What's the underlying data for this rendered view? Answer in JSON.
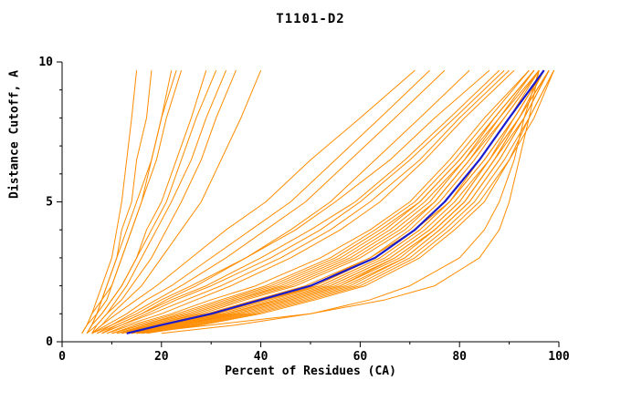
{
  "title": "T1101-D2",
  "chart_data": {
    "type": "line",
    "title": "T1101-D2",
    "xlabel": "Percent of Residues (CA)",
    "ylabel": "Distance Cutoff, A",
    "xlim": [
      0,
      100
    ],
    "ylim": [
      0,
      10
    ],
    "x_ticks_major": [
      0,
      20,
      40,
      60,
      80,
      100
    ],
    "x_ticks_minor": [
      10,
      30,
      50,
      70,
      90
    ],
    "y_ticks_major": [
      0,
      5,
      10
    ],
    "y_ticks_minor": [
      1,
      2,
      3,
      4,
      6,
      7,
      8,
      9
    ],
    "grid": false,
    "legend": "none",
    "colors": {
      "prediction": "#ff8c00",
      "highlight": "#1a1acd",
      "axis": "#000000"
    },
    "cutoffs": [
      0.3,
      0.6,
      1,
      1.5,
      2,
      3,
      4,
      5,
      6.5,
      8,
      9.7
    ],
    "series": [
      {
        "values": [
          12,
          19,
          29,
          39,
          49,
          62,
          70,
          76,
          83,
          89,
          96
        ]
      },
      {
        "values": [
          14,
          22,
          33,
          44,
          54,
          66,
          74,
          80,
          86,
          92,
          98
        ]
      },
      {
        "values": [
          11,
          17,
          26,
          35,
          45,
          58,
          67,
          74,
          81,
          88,
          95
        ]
      },
      {
        "values": [
          15,
          24,
          36,
          47,
          57,
          69,
          76,
          82,
          88,
          93,
          98
        ]
      },
      {
        "values": [
          13,
          21,
          32,
          42,
          52,
          64,
          72,
          78,
          85,
          91,
          97
        ]
      },
      {
        "values": [
          10,
          16,
          25,
          34,
          43,
          56,
          65,
          72,
          80,
          87,
          95
        ]
      },
      {
        "values": [
          16,
          26,
          38,
          49,
          59,
          70,
          77,
          83,
          89,
          94,
          99
        ]
      },
      {
        "values": [
          12,
          18,
          28,
          37,
          47,
          60,
          69,
          75,
          82,
          89,
          96
        ]
      },
      {
        "values": [
          14,
          23,
          34,
          45,
          55,
          67,
          75,
          81,
          87,
          92,
          97
        ]
      },
      {
        "values": [
          11,
          18,
          27,
          36,
          46,
          59,
          68,
          75,
          82,
          88,
          96
        ]
      },
      {
        "values": [
          13,
          20,
          31,
          41,
          51,
          63,
          71,
          78,
          84,
          90,
          97
        ]
      },
      {
        "values": [
          15,
          25,
          37,
          48,
          58,
          69,
          76,
          82,
          88,
          93,
          98
        ]
      },
      {
        "values": [
          12,
          19,
          30,
          40,
          50,
          62,
          71,
          77,
          84,
          90,
          96
        ]
      },
      {
        "values": [
          10,
          15,
          23,
          32,
          41,
          54,
          63,
          71,
          79,
          86,
          94
        ]
      },
      {
        "values": [
          14,
          22,
          33,
          43,
          53,
          65,
          73,
          79,
          86,
          91,
          97
        ]
      },
      {
        "values": [
          16,
          27,
          39,
          50,
          60,
          71,
          78,
          84,
          90,
          94,
          99
        ]
      },
      {
        "values": [
          13,
          21,
          31,
          41,
          52,
          64,
          72,
          78,
          85,
          91,
          97
        ]
      },
      {
        "values": [
          11,
          17,
          26,
          35,
          44,
          57,
          66,
          73,
          81,
          87,
          95
        ]
      },
      {
        "values": [
          15,
          24,
          35,
          46,
          56,
          68,
          75,
          81,
          87,
          93,
          98
        ]
      },
      {
        "values": [
          12,
          20,
          30,
          40,
          50,
          63,
          71,
          77,
          84,
          90,
          97
        ]
      },
      {
        "values": [
          9,
          14,
          22,
          30,
          39,
          52,
          62,
          70,
          78,
          85,
          94
        ]
      },
      {
        "values": [
          17,
          28,
          40,
          51,
          61,
          72,
          79,
          85,
          90,
          95,
          99
        ]
      },
      {
        "values": [
          13,
          22,
          33,
          44,
          54,
          66,
          74,
          80,
          86,
          92,
          98
        ]
      },
      {
        "values": [
          10,
          16,
          24,
          33,
          42,
          55,
          64,
          72,
          80,
          87,
          95
        ]
      },
      {
        "values": [
          14,
          23,
          35,
          46,
          56,
          67,
          75,
          81,
          87,
          92,
          98
        ]
      },
      {
        "values": [
          8,
          12,
          18,
          25,
          32,
          44,
          54,
          62,
          72,
          80,
          90
        ]
      },
      {
        "values": [
          7,
          11,
          16,
          22,
          29,
          40,
          50,
          59,
          69,
          78,
          88
        ]
      },
      {
        "values": [
          9,
          13,
          20,
          27,
          34,
          46,
          56,
          64,
          73,
          81,
          91
        ]
      },
      {
        "values": [
          6,
          10,
          15,
          20,
          26,
          37,
          47,
          55,
          66,
          75,
          86
        ]
      },
      {
        "values": [
          8,
          12,
          17,
          23,
          30,
          42,
          52,
          60,
          70,
          79,
          89
        ]
      },
      {
        "values": [
          7,
          10,
          14,
          19,
          24,
          33,
          41,
          49,
          58,
          67,
          77
        ]
      },
      {
        "values": [
          6,
          9,
          13,
          17,
          22,
          30,
          38,
          46,
          55,
          64,
          74
        ]
      },
      {
        "values": [
          8,
          11,
          16,
          21,
          27,
          37,
          46,
          54,
          63,
          72,
          82
        ]
      },
      {
        "values": [
          6,
          8,
          11,
          15,
          19,
          26,
          33,
          41,
          50,
          60,
          71
        ]
      },
      {
        "values": [
          20,
          35,
          50,
          62,
          70,
          80,
          85,
          88,
          91,
          93,
          96
        ]
      },
      {
        "values": [
          15,
          30,
          50,
          65,
          75,
          84,
          88,
          90,
          92,
          94,
          96
        ]
      },
      {
        "values": [
          4,
          5,
          6,
          7,
          8,
          10,
          11,
          12,
          13,
          14,
          15
        ]
      },
      {
        "values": [
          5,
          6,
          7,
          8,
          9,
          11,
          12,
          14,
          15,
          17,
          18
        ]
      },
      {
        "values": [
          5,
          6,
          7,
          9,
          10,
          12,
          14,
          16,
          18,
          20,
          22
        ]
      },
      {
        "values": [
          4,
          5,
          7,
          8,
          10,
          12,
          14,
          16,
          19,
          21,
          24
        ]
      },
      {
        "values": [
          5,
          6,
          8,
          10,
          12,
          15,
          17,
          20,
          23,
          26,
          29
        ]
      },
      {
        "values": [
          5,
          7,
          9,
          11,
          13,
          16,
          19,
          22,
          26,
          29,
          33
        ]
      },
      {
        "values": [
          6,
          7,
          9,
          12,
          14,
          18,
          21,
          24,
          28,
          31,
          35
        ]
      },
      {
        "values": [
          4,
          5,
          6,
          8,
          9,
          11,
          13,
          15,
          18,
          20,
          23
        ]
      },
      {
        "values": [
          6,
          8,
          10,
          13,
          16,
          20,
          24,
          28,
          32,
          36,
          40
        ]
      },
      {
        "values": [
          5,
          6,
          8,
          10,
          12,
          15,
          18,
          21,
          24,
          27,
          31
        ]
      }
    ],
    "highlight": {
      "values": [
        13,
        20,
        30,
        40,
        50,
        63,
        71,
        77,
        84,
        90,
        97
      ]
    }
  }
}
